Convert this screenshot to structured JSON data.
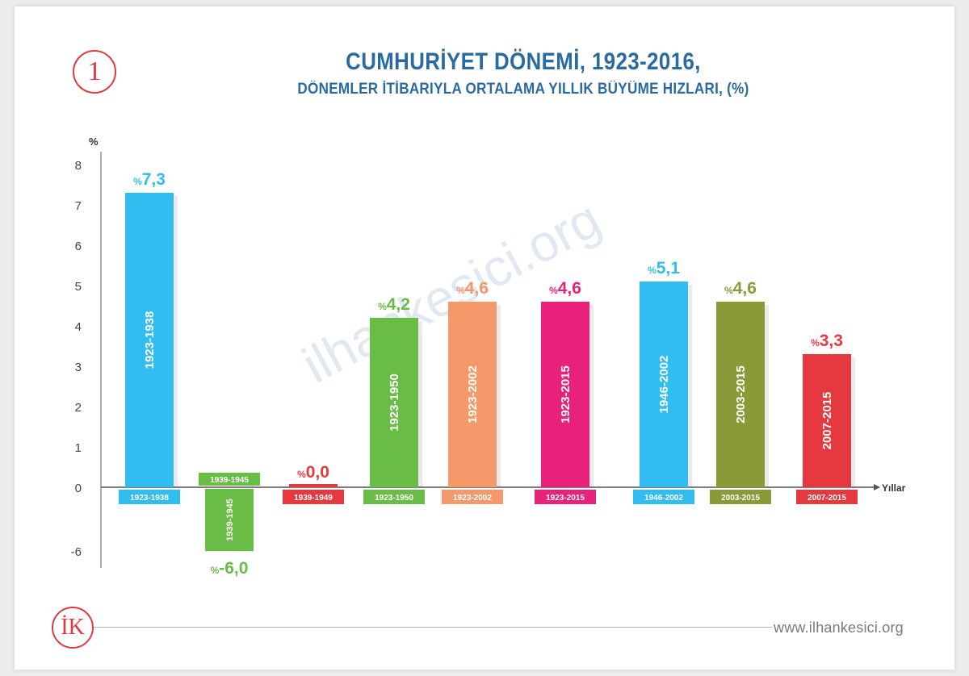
{
  "header": {
    "badge": "1",
    "title": "CUMHURİYET DÖNEMİ, 1923-2016,",
    "subtitle": "DÖNEMLER İTİBARIYLA ORTALAMA YILLIK BÜYÜME HIZLARI, (%)"
  },
  "footer": {
    "logo": "İK",
    "website": "www.ilhankesici.org",
    "watermark": "ilhankesici.org"
  },
  "chart_data": {
    "type": "bar",
    "ylabel": "%",
    "xlabel": "Yıllar",
    "yticks": [
      "8",
      "7",
      "6",
      "5",
      "4",
      "3",
      "2",
      "1",
      "0",
      "-6"
    ],
    "bars": [
      {
        "period": "1923-1938",
        "value": 7.3,
        "label_num": "7,3",
        "color": "#32bdf0"
      },
      {
        "period": "1939-1945",
        "value": -6.0,
        "label_num": "-6,0",
        "color": "#69bc45"
      },
      {
        "period": "1939-1949",
        "value": 0.0,
        "label_num": "0,0",
        "color": "#e6393f"
      },
      {
        "period": "1923-1950",
        "value": 4.2,
        "label_num": "4,2",
        "color": "#69bc45"
      },
      {
        "period": "1923-2002",
        "value": 4.6,
        "label_num": "4,6",
        "color": "#f5986a"
      },
      {
        "period": "1923-2015",
        "value": 4.6,
        "label_num": "4,6",
        "color": "#e8217a"
      },
      {
        "period": "1946-2002",
        "value": 5.1,
        "label_num": "5,1",
        "color": "#32bdf0"
      },
      {
        "period": "2003-2015",
        "value": 4.6,
        "label_num": "4,6",
        "color": "#8a9a36"
      },
      {
        "period": "2007-2015",
        "value": 3.3,
        "label_num": "3,3",
        "color": "#e6393f"
      }
    ],
    "value_prefix": "%"
  }
}
